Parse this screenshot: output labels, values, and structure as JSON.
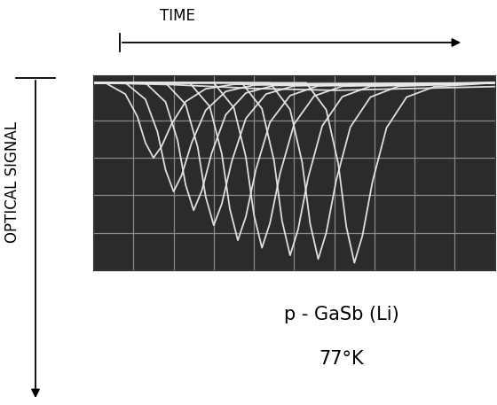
{
  "chart_data": {
    "type": "line",
    "x_label": "TIME",
    "y_label": "OPTICAL SIGNAL",
    "annotations": [
      "p - GaSb (Li)",
      "77°K"
    ],
    "xlim": [
      0,
      10
    ],
    "ylim": [
      -5,
      0.2
    ],
    "xticks": [
      0,
      1,
      2,
      3,
      4,
      5,
      6,
      7,
      8,
      9,
      10
    ],
    "yticks": [
      -5,
      -4,
      -3,
      -2,
      -1,
      0
    ],
    "grid": true,
    "tick_labels": false,
    "color": "#e8e8e8",
    "series": [
      {
        "x": [
          0,
          2,
          4,
          6,
          8,
          10
        ],
        "values": [
          0,
          -0.05,
          -0.15,
          -0.2,
          -0.15,
          -0.1
        ]
      },
      {
        "x": [
          0,
          0.3,
          0.8,
          1.1,
          1.3,
          1.5,
          1.7,
          1.95,
          2.3,
          2.8,
          3.5,
          10
        ],
        "values": [
          0,
          0,
          -0.3,
          -0.9,
          -1.6,
          -2.0,
          -1.7,
          -1.1,
          -0.5,
          -0.16,
          -0.04,
          0
        ]
      },
      {
        "x": [
          0,
          0.8,
          1.3,
          1.6,
          1.8,
          2.0,
          2.2,
          2.45,
          2.8,
          3.3,
          4.0,
          10
        ],
        "values": [
          0,
          0,
          -0.44,
          -1.31,
          -2.32,
          -2.9,
          -2.47,
          -1.6,
          -0.73,
          -0.23,
          -0.06,
          0
        ]
      },
      {
        "x": [
          0,
          1.3,
          1.8,
          2.1,
          2.3,
          2.5,
          2.7,
          2.95,
          3.3,
          3.8,
          4.5,
          10
        ],
        "values": [
          0,
          0,
          -0.51,
          -1.53,
          -2.72,
          -3.4,
          -2.89,
          -1.87,
          -0.85,
          -0.27,
          -0.07,
          0
        ]
      },
      {
        "x": [
          0,
          1.8,
          2.3,
          2.6,
          2.8,
          3.0,
          3.2,
          3.45,
          3.8,
          4.3,
          5.0,
          10
        ],
        "values": [
          0,
          0,
          -0.57,
          -1.71,
          -3.04,
          -3.8,
          -3.23,
          -2.09,
          -0.95,
          -0.3,
          -0.08,
          0
        ]
      },
      {
        "x": [
          0,
          2.4,
          2.9,
          3.2,
          3.4,
          3.6,
          3.8,
          4.05,
          4.4,
          4.9,
          5.6,
          10
        ],
        "values": [
          0,
          0,
          -0.63,
          -1.89,
          -3.36,
          -4.2,
          -3.57,
          -2.31,
          -1.05,
          -0.34,
          -0.08,
          0
        ]
      },
      {
        "x": [
          0,
          3.0,
          3.5,
          3.8,
          4.0,
          4.2,
          4.4,
          4.65,
          5.0,
          5.5,
          6.2,
          10
        ],
        "values": [
          0,
          0,
          -0.66,
          -1.98,
          -3.52,
          -4.4,
          -3.74,
          -2.42,
          -1.1,
          -0.35,
          -0.09,
          0
        ]
      },
      {
        "x": [
          0,
          3.7,
          4.2,
          4.5,
          4.7,
          4.9,
          5.1,
          5.35,
          5.7,
          6.2,
          6.9,
          10
        ],
        "values": [
          0,
          0,
          -0.69,
          -2.07,
          -3.68,
          -4.6,
          -3.91,
          -2.53,
          -1.15,
          -0.37,
          -0.09,
          0
        ]
      },
      {
        "x": [
          0,
          4.4,
          4.9,
          5.2,
          5.4,
          5.6,
          5.8,
          6.05,
          6.4,
          6.9,
          7.6,
          10
        ],
        "values": [
          0,
          0,
          -0.71,
          -2.12,
          -3.76,
          -4.7,
          -4.0,
          -2.59,
          -1.18,
          -0.38,
          -0.09,
          0
        ]
      },
      {
        "x": [
          0,
          5.3,
          5.8,
          6.1,
          6.3,
          6.5,
          6.7,
          6.95,
          7.3,
          7.8,
          8.5,
          10
        ],
        "values": [
          0,
          0,
          -0.72,
          -2.16,
          -3.84,
          -4.8,
          -4.08,
          -2.64,
          -1.2,
          -0.38,
          -0.1,
          0
        ]
      }
    ]
  }
}
